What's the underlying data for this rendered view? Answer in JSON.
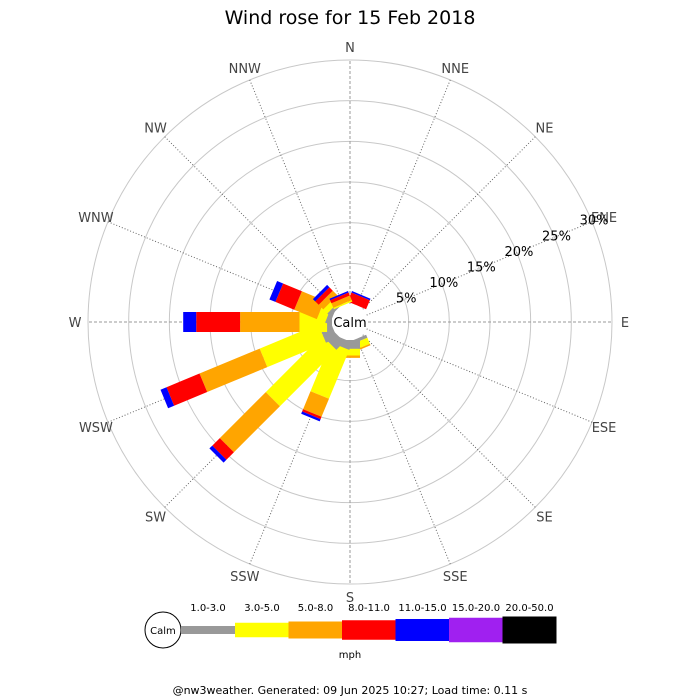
{
  "chart_data": {
    "type": "windrose",
    "title": "Wind rose for 15 Feb 2018",
    "directions": [
      "N",
      "NNE",
      "NE",
      "ENE",
      "E",
      "ESE",
      "SE",
      "SSE",
      "S",
      "SSW",
      "SW",
      "WSW",
      "W",
      "WNW",
      "NW",
      "NNW"
    ],
    "ring_percents": [
      5,
      10,
      15,
      20,
      25,
      30
    ],
    "ring_labels": [
      "5%",
      "10%",
      "15%",
      "20%",
      "25%",
      "30%"
    ],
    "rmax_percent": 30,
    "calm_label": "Calm",
    "units": "mph",
    "speed_bins": [
      {
        "label": "1.0-3.0",
        "color": "#999999"
      },
      {
        "label": "3.0-5.0",
        "color": "#ffff00"
      },
      {
        "label": "5.0-8.0",
        "color": "#ffa500"
      },
      {
        "label": "8.0-11.0",
        "color": "#ff0000"
      },
      {
        "label": "11.0-15.0",
        "color": "#0000ff"
      },
      {
        "label": "15.0-20.0",
        "color": "#a020f0"
      },
      {
        "label": "20.0-50.0",
        "color": "#000000"
      }
    ],
    "series": [
      {
        "direction": "NNE",
        "values": [
          0.0,
          0.0,
          0.0,
          1.2,
          0.2,
          0,
          0
        ]
      },
      {
        "direction": "SSE",
        "values": [
          0.4,
          0.8,
          0.2,
          0.0,
          0.0,
          0,
          0
        ]
      },
      {
        "direction": "S",
        "values": [
          1.1,
          0.8,
          0.3,
          0.0,
          0.0,
          0,
          0
        ]
      },
      {
        "direction": "SSW",
        "values": [
          1.0,
          6.5,
          2.4,
          0.3,
          0.3,
          0,
          0
        ]
      },
      {
        "direction": "SW",
        "values": [
          1.4,
          9.8,
          8.0,
          1.3,
          0.5,
          0,
          0
        ]
      },
      {
        "direction": "WSW",
        "values": [
          1.5,
          7.8,
          8.0,
          4.4,
          0.8,
          0,
          0
        ]
      },
      {
        "direction": "W",
        "values": [
          0.6,
          3.4,
          7.3,
          5.4,
          1.6,
          0,
          0
        ]
      },
      {
        "direction": "WNW",
        "values": [
          0.6,
          1.1,
          3.0,
          2.5,
          0.8,
          0,
          0
        ]
      },
      {
        "direction": "NW",
        "values": [
          0.5,
          0.7,
          0.8,
          0.6,
          0.4,
          0,
          0
        ]
      },
      {
        "direction": "NNW",
        "values": [
          0.0,
          0.2,
          0.6,
          0.4,
          0.2,
          0,
          0
        ]
      }
    ]
  },
  "footer": "@nw3weather. Generated: 09 Jun 2025 10:27; Load time: 0.11 s"
}
